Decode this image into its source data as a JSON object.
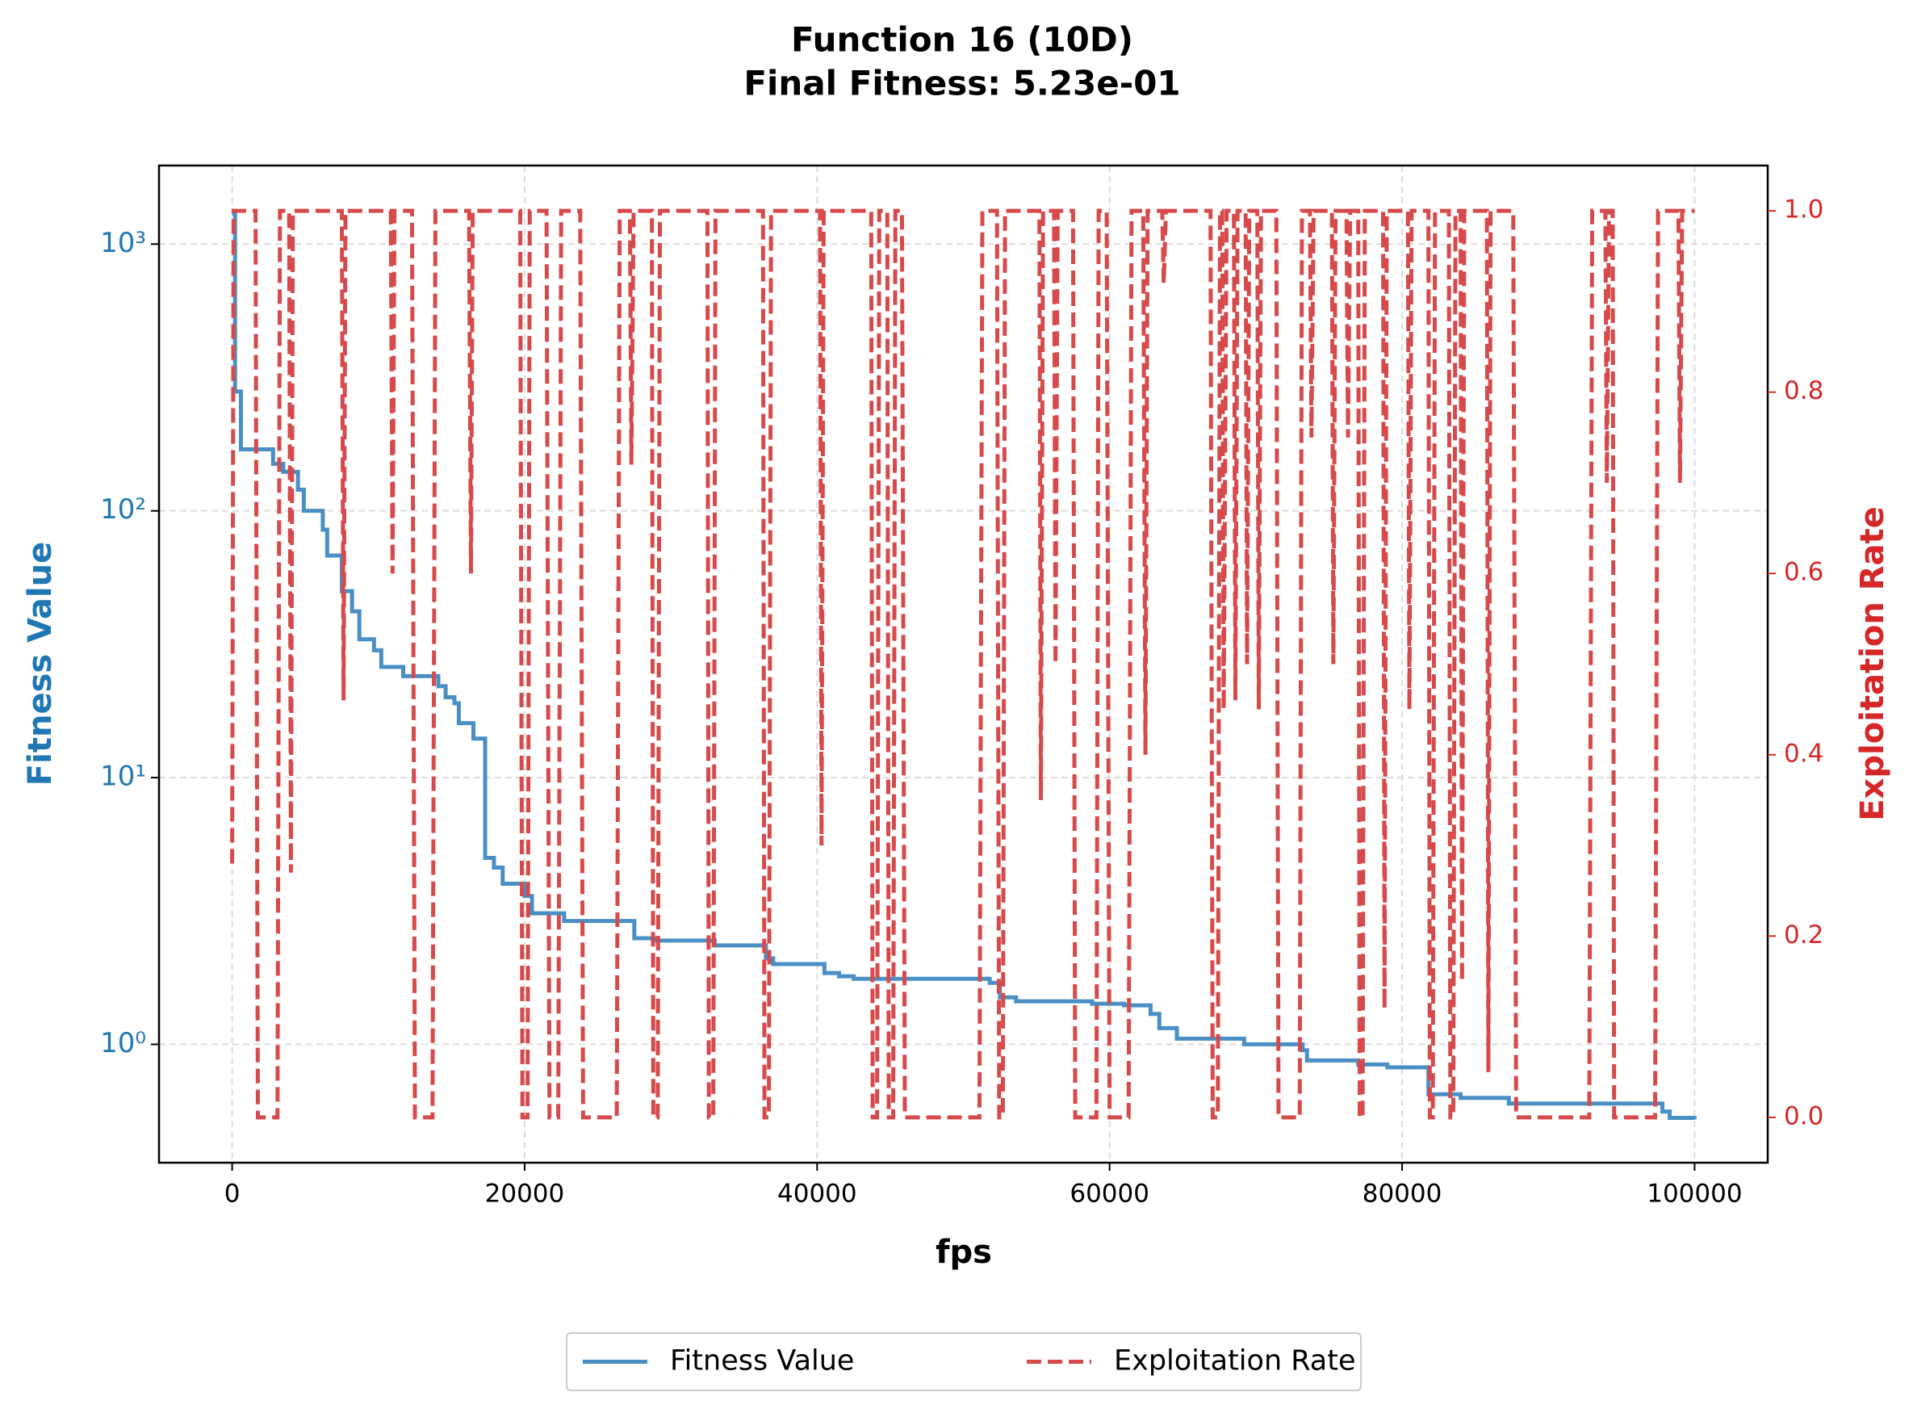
{
  "chart_data": {
    "type": "line",
    "title": "Function 16 (10D)",
    "subtitle": "Final Fitness: 5.23e-01",
    "xlabel": "fps",
    "ylabel": "Fitness Value",
    "y2label": "Exploitation Rate",
    "xlim": [
      -5000,
      105000
    ],
    "ylim": [
      0.36,
      1970
    ],
    "y2lim": [
      -0.05,
      1.05
    ],
    "ylog": true,
    "grid": true,
    "legend": "bottom",
    "xticks": [
      0,
      20000,
      40000,
      60000,
      80000,
      100000
    ],
    "yticks": [
      {
        "value": 1,
        "label": "10⁰"
      },
      {
        "value": 10,
        "label": "10¹"
      },
      {
        "value": 100,
        "label": "10²"
      },
      {
        "value": 1000,
        "label": "10³"
      }
    ],
    "y2ticks": [
      {
        "value": 0,
        "label": "0.0"
      },
      0.2,
      0.4,
      0.6,
      0.8,
      {
        "value": 1,
        "label": "1.0"
      }
    ],
    "series": [
      {
        "name": "Fitness Value",
        "color": "#4a8fc4",
        "step": true,
        "dashed": false,
        "x": [
          0,
          200,
          600,
          2800,
          3500,
          4500,
          4900,
          6200,
          6500,
          7500,
          8200,
          8700,
          9700,
          10200,
          11700,
          14100,
          14600,
          15200,
          15500,
          16500,
          17300,
          17900,
          18500,
          20000,
          20500,
          22700,
          27500,
          29000,
          33000,
          36500,
          37000,
          40500,
          41500,
          42500,
          51800,
          52500,
          53600,
          58800,
          61000,
          62800,
          63400,
          64600,
          69200,
          73200,
          73500,
          77000,
          79000,
          81800,
          84000,
          87300,
          97800,
          98300,
          100000
        ],
        "values": [
          1300,
          280,
          170,
          150,
          140,
          120,
          100,
          85,
          68,
          50,
          42,
          33,
          30,
          26,
          24,
          22,
          20,
          19,
          16,
          14,
          5,
          4.6,
          4.0,
          3.6,
          3.1,
          2.9,
          2.5,
          2.45,
          2.35,
          2.1,
          2.0,
          1.85,
          1.8,
          1.76,
          1.7,
          1.5,
          1.45,
          1.42,
          1.4,
          1.3,
          1.15,
          1.05,
          1.0,
          0.95,
          0.87,
          0.84,
          0.82,
          0.65,
          0.63,
          0.6,
          0.56,
          0.53,
          0.523
        ]
      },
      {
        "name": "Exploitation Rate",
        "color": "#d64a4b",
        "axis": "y2",
        "step": false,
        "dashed": true,
        "x": [
          0,
          100,
          1600,
          1760,
          3100,
          3270,
          3900,
          4020,
          4150,
          7500,
          7620,
          7750,
          10850,
          10970,
          11100,
          12300,
          12500,
          13700,
          13900,
          16200,
          16330,
          16450,
          19700,
          19850,
          20200,
          20350,
          21500,
          21700,
          22300,
          22500,
          23800,
          24000,
          26300,
          26500,
          27200,
          27300,
          27450,
          28700,
          28800,
          29100,
          29250,
          32500,
          32600,
          32900,
          33050,
          36300,
          36400,
          36700,
          36850,
          40200,
          40300,
          40450,
          43700,
          43800,
          44100,
          44250,
          44800,
          44900,
          45200,
          45350,
          45800,
          46000,
          51100,
          51300,
          52300,
          52450,
          52700,
          52850,
          55200,
          55300,
          55450,
          56200,
          56300,
          56450,
          57500,
          57650,
          59100,
          59250,
          59800,
          60000,
          61300,
          61500,
          62300,
          62450,
          62600,
          63600,
          63700,
          63850,
          66900,
          67050,
          67400,
          67550,
          67700,
          67800,
          68000,
          68500,
          68600,
          68750,
          69300,
          69400,
          69550,
          70100,
          70200,
          70350,
          71400,
          71550,
          73000,
          73150,
          73700,
          73800,
          73950,
          75200,
          75300,
          75450,
          76200,
          76300,
          76450,
          77000,
          77100,
          77300,
          77450,
          78700,
          78800,
          78950,
          80400,
          80500,
          80650,
          81800,
          81900,
          82100,
          82250,
          83200,
          83300,
          83500,
          83650,
          84000,
          84100,
          84250,
          85800,
          85900,
          86050,
          87600,
          87800,
          92800,
          93000,
          93900,
          94000,
          94150,
          94400,
          94500,
          97300,
          97500,
          98900,
          99000,
          99150,
          100000
        ],
        "values": [
          0.28,
          1,
          1,
          0,
          0,
          1,
          1,
          0.27,
          1,
          1,
          0.46,
          1,
          1,
          0.6,
          1,
          1,
          0,
          0,
          1,
          1,
          0.6,
          1,
          1,
          0,
          0,
          1,
          1,
          0,
          0,
          1,
          1,
          0,
          0,
          1,
          1,
          0.72,
          1,
          1,
          0,
          0,
          1,
          1,
          0,
          0,
          1,
          1,
          0,
          0,
          1,
          1,
          0.3,
          1,
          1,
          0,
          0,
          1,
          1,
          0,
          0,
          1,
          1,
          0,
          0,
          1,
          1,
          0,
          0,
          1,
          1,
          0.35,
          1,
          1,
          0.5,
          1,
          1,
          0,
          0,
          1,
          1,
          0,
          0,
          1,
          1,
          0.4,
          1,
          1,
          0.92,
          1,
          1,
          0,
          0,
          1,
          1,
          0.45,
          1,
          1,
          0.46,
          1,
          1,
          0.5,
          1,
          1,
          0.45,
          1,
          1,
          0,
          0,
          1,
          1,
          0.75,
          1,
          1,
          0.5,
          1,
          1,
          0.75,
          1,
          1,
          0,
          0,
          1,
          1,
          0.12,
          1,
          1,
          0.45,
          1,
          1,
          0,
          0,
          1,
          1,
          0,
          0,
          1,
          1,
          0.15,
          1,
          1,
          0.05,
          1,
          1,
          0,
          0,
          1,
          1,
          0.7,
          1,
          1,
          0,
          0,
          1,
          1,
          0.7,
          1,
          1
        ]
      }
    ]
  }
}
